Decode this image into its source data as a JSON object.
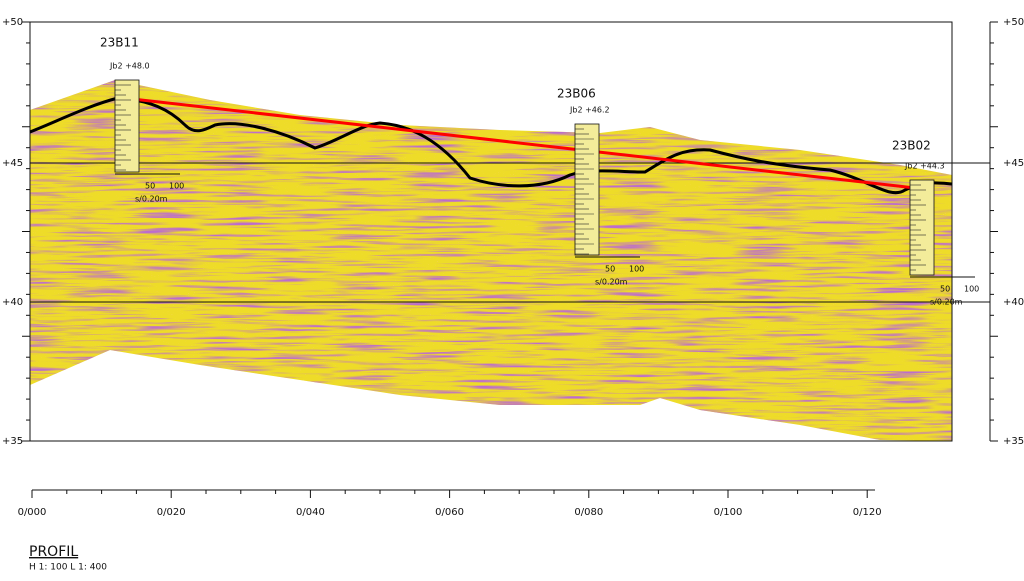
{
  "elevations_left": [
    "+50",
    "+45",
    "+40",
    "+35"
  ],
  "elevations_right": [
    "+50",
    "+45",
    "+40",
    "+35"
  ],
  "boreholes": [
    {
      "name": "23B11",
      "level": "Jb2  +48.0",
      "scale_a": "50",
      "scale_b": "100",
      "unit": "s/0.20m"
    },
    {
      "name": "23B06",
      "level": "Jb2  +46.2",
      "scale_a": "50",
      "scale_b": "100",
      "unit": "s/0.20m"
    },
    {
      "name": "23B02",
      "level": "Jb2  +44.3",
      "scale_a": "50",
      "scale_b": "100",
      "unit": "s/0.20m"
    }
  ],
  "chainage": [
    "0/000",
    "0/020",
    "0/040",
    "0/060",
    "0/080",
    "0/100",
    "0/120"
  ],
  "footer": {
    "title": "PROFIL",
    "scale": "H 1: 100   L 1: 400"
  }
}
